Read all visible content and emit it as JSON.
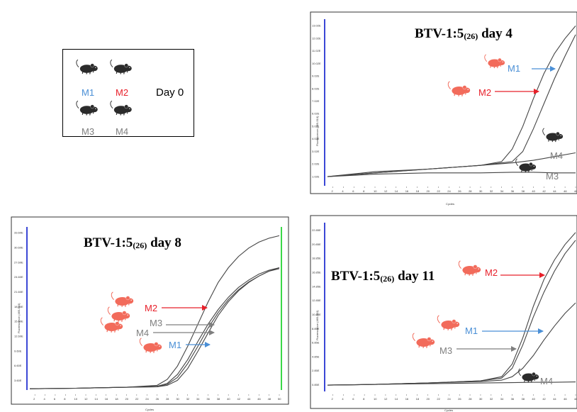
{
  "colors": {
    "m1": "#4a8fd6",
    "m2": "#e8202a",
    "gray": "#7f7f7f",
    "black_mouse": "#2b2b2b",
    "red_mouse": "#f26b5b",
    "axis_blue": "#3b47d6",
    "threshold_green": "#3cd84a"
  },
  "day0_box": {
    "mice": [
      {
        "label": "M1",
        "color": "m1"
      },
      {
        "label": "M2",
        "color": "m2"
      },
      {
        "label": "M3",
        "color": "gray"
      },
      {
        "label": "M4",
        "color": "gray"
      }
    ],
    "day_label": "Day 0"
  },
  "chart_data": [
    {
      "id": "day4",
      "type": "line",
      "title": "BTV-1:5",
      "title_sub": "(26)",
      "title_suffix": " day 4",
      "xlabel": "Cycles",
      "ylabel": "Fluorescence (465-510)",
      "xlim": [
        1,
        48
      ],
      "ylim": [
        0.5,
        13.2
      ],
      "x_ticks": [
        2,
        4,
        6,
        8,
        10,
        12,
        14,
        16,
        18,
        20,
        22,
        24,
        26,
        28,
        30,
        32,
        34,
        36,
        38,
        40,
        42,
        44,
        46,
        48
      ],
      "y_ticks": [
        {
          "v": 1.02,
          "label": "1.02E"
        },
        {
          "v": 2.02,
          "label": "2.02E"
        },
        {
          "v": 3.02,
          "label": "3.02E"
        },
        {
          "v": 4.02,
          "label": "4.02E"
        },
        {
          "v": 5.02,
          "label": "5.02E"
        },
        {
          "v": 6.02,
          "label": "6.02E"
        },
        {
          "v": 7.02,
          "label": "7.02E"
        },
        {
          "v": 8.02,
          "label": "8.02E"
        },
        {
          "v": 9.02,
          "label": "9.02E"
        },
        {
          "v": 10.02,
          "label": "10.02E"
        },
        {
          "v": 11.02,
          "label": "11.02E"
        },
        {
          "v": 12.02,
          "label": "12.02E"
        },
        {
          "v": 13.02,
          "label": "13.02E"
        }
      ],
      "series": [
        {
          "name": "M2",
          "mouse": "red",
          "x": [
            1,
            10,
            20,
            30,
            34,
            36,
            38,
            40,
            42,
            44,
            46,
            48
          ],
          "y": [
            1.0,
            1.3,
            1.6,
            1.9,
            2.2,
            3.2,
            5.0,
            7.2,
            9.2,
            10.8,
            12.0,
            13.0
          ]
        },
        {
          "name": "M1",
          "mouse": "red",
          "x": [
            1,
            10,
            20,
            30,
            36,
            38,
            40,
            42,
            44,
            46,
            48
          ],
          "y": [
            1.0,
            1.3,
            1.6,
            1.9,
            2.2,
            3.0,
            4.8,
            6.8,
            8.8,
            10.6,
            12.3
          ]
        },
        {
          "name": "M4",
          "mouse": "black",
          "x": [
            1,
            10,
            20,
            30,
            36,
            40,
            44,
            48
          ],
          "y": [
            1.0,
            1.4,
            1.6,
            1.9,
            2.1,
            2.3,
            2.6,
            2.9
          ]
        },
        {
          "name": "M3",
          "mouse": "black",
          "x": [
            1,
            10,
            20,
            30,
            36,
            40,
            44,
            48
          ],
          "y": [
            1.0,
            1.2,
            1.3,
            1.3,
            1.35,
            1.35,
            1.3,
            1.3
          ]
        }
      ]
    },
    {
      "id": "day8",
      "type": "line",
      "title": "BTV-1:5",
      "title_sub": "(26)",
      "title_suffix": " day 8",
      "xlabel": "Cycles",
      "ylabel": "Fluorescence (465-510)",
      "xlim": [
        1,
        50
      ],
      "ylim": [
        1.5,
        34.5
      ],
      "x_ticks": [
        2,
        4,
        6,
        8,
        10,
        12,
        14,
        16,
        18,
        20,
        22,
        24,
        26,
        28,
        30,
        32,
        34,
        36,
        38,
        40,
        42,
        44,
        46,
        48,
        50
      ],
      "y_ticks": [
        {
          "v": 3.6,
          "label": "3.60E"
        },
        {
          "v": 6.6,
          "label": "6.60E"
        },
        {
          "v": 9.6,
          "label": "9.60E"
        },
        {
          "v": 12.6,
          "label": "12.60E"
        },
        {
          "v": 15.6,
          "label": "15.60E"
        },
        {
          "v": 18.6,
          "label": "18.60E"
        },
        {
          "v": 21.6,
          "label": "21.60E"
        },
        {
          "v": 24.6,
          "label": "24.60E"
        },
        {
          "v": 27.6,
          "label": "27.60E"
        },
        {
          "v": 30.6,
          "label": "30.60E"
        },
        {
          "v": 33.6,
          "label": "33.60E"
        }
      ],
      "series": [
        {
          "name": "M2",
          "mouse": "red",
          "x": [
            1,
            10,
            20,
            26,
            28,
            30,
            32,
            34,
            36,
            38,
            40,
            42,
            44,
            46,
            48,
            50
          ],
          "y": [
            1.9,
            2.0,
            2.2,
            2.6,
            3.8,
            6.5,
            10.5,
            15.0,
            19.5,
            23.5,
            26.5,
            28.8,
            30.5,
            31.7,
            32.5,
            33.0
          ]
        },
        {
          "name": "M3",
          "mouse": "red",
          "x": [
            1,
            10,
            20,
            26,
            28,
            30,
            32,
            34,
            36,
            38,
            40,
            42,
            44,
            46,
            48,
            50
          ],
          "y": [
            1.9,
            2.0,
            2.2,
            2.4,
            3.0,
            4.8,
            7.8,
            11.5,
            15.0,
            18.0,
            20.5,
            22.5,
            24.0,
            25.2,
            26.0,
            26.5
          ]
        },
        {
          "name": "M4",
          "mouse": "red",
          "x": [
            1,
            10,
            20,
            26,
            28,
            30,
            32,
            34,
            36,
            38,
            40,
            42,
            44,
            46,
            48,
            50
          ],
          "y": [
            1.9,
            2.0,
            2.2,
            2.3,
            2.8,
            4.2,
            7.0,
            10.5,
            14.2,
            17.4,
            20.0,
            22.0,
            23.6,
            24.8,
            25.8,
            26.5
          ]
        },
        {
          "name": "M1",
          "mouse": "red",
          "x": [
            1,
            10,
            20,
            26,
            28,
            30,
            32,
            34,
            36,
            38,
            40,
            42,
            44,
            46,
            48,
            50
          ],
          "y": [
            1.9,
            2.0,
            2.2,
            2.3,
            2.6,
            3.6,
            6.0,
            9.5,
            13.2,
            16.8,
            19.6,
            21.8,
            23.5,
            24.8,
            25.8,
            26.3
          ]
        }
      ],
      "threshold_line": true
    },
    {
      "id": "day11",
      "type": "line",
      "title": "BTV-1:5",
      "title_sub": "(26)",
      "title_suffix": " day 11",
      "xlabel": "Cycles",
      "ylabel": "Fluorescence (465-510)",
      "xlim": [
        1,
        48
      ],
      "ylim": [
        0,
        23.5
      ],
      "x_ticks": [
        2,
        4,
        6,
        8,
        10,
        12,
        14,
        16,
        18,
        20,
        22,
        24,
        26,
        28,
        30,
        32,
        34,
        36,
        38,
        40,
        42,
        44,
        46,
        48
      ],
      "y_ticks": [
        {
          "v": 0.85,
          "label": "0.85E"
        },
        {
          "v": 2.85,
          "label": "2.85E"
        },
        {
          "v": 4.85,
          "label": "4.85E"
        },
        {
          "v": 6.85,
          "label": "6.85E"
        },
        {
          "v": 8.85,
          "label": "8.85E"
        },
        {
          "v": 10.85,
          "label": "10.85E"
        },
        {
          "v": 12.85,
          "label": "12.85E"
        },
        {
          "v": 14.85,
          "label": "14.85E"
        },
        {
          "v": 16.85,
          "label": "16.85E"
        },
        {
          "v": 18.85,
          "label": "18.85E"
        },
        {
          "v": 20.85,
          "label": "20.85E"
        },
        {
          "v": 22.85,
          "label": "22.85E"
        }
      ],
      "series": [
        {
          "name": "M2",
          "mouse": "red",
          "x": [
            1,
            10,
            20,
            30,
            34,
            36,
            38,
            40,
            42,
            44,
            46,
            48
          ],
          "y": [
            0.8,
            0.9,
            1.1,
            1.4,
            2.0,
            3.8,
            7.5,
            12.0,
            15.8,
            18.6,
            20.8,
            22.5
          ]
        },
        {
          "name": "M1",
          "mouse": "red",
          "x": [
            1,
            10,
            20,
            30,
            34,
            36,
            38,
            40,
            42,
            44,
            46,
            48
          ],
          "y": [
            0.8,
            0.9,
            1.1,
            1.4,
            1.8,
            3.2,
            6.5,
            10.5,
            14.0,
            17.0,
            19.5,
            21.4
          ]
        },
        {
          "name": "M3",
          "mouse": "red",
          "x": [
            1,
            10,
            20,
            30,
            34,
            36,
            38,
            40,
            42,
            44,
            46,
            48
          ],
          "y": [
            0.8,
            0.9,
            1.1,
            1.3,
            1.5,
            2.0,
            3.2,
            5.0,
            7.2,
            9.2,
            11.0,
            12.5
          ]
        },
        {
          "name": "M4",
          "mouse": "black",
          "x": [
            1,
            10,
            20,
            30,
            36,
            40,
            44,
            48
          ],
          "y": [
            0.8,
            0.9,
            1.0,
            1.1,
            1.15,
            1.2,
            1.2,
            1.25
          ]
        }
      ]
    }
  ]
}
